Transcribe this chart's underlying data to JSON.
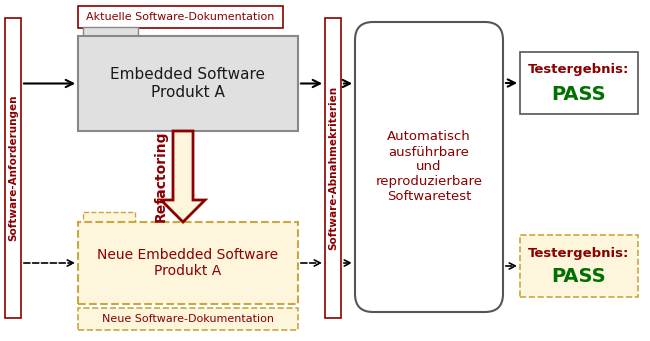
{
  "fig_width": 6.5,
  "fig_height": 3.41,
  "dpi": 100,
  "bg_color": "#ffffff",
  "dark_red": "#8B0000",
  "green": "#007000",
  "box_gray_fill": "#e0e0e0",
  "box_gray_border": "#888888",
  "box_wheat_fill": "#fdf5dc",
  "box_wheat_border": "#c8a840",
  "box_white_fill": "#ffffff",
  "box_dark_border": "#555555",
  "refactor_fill": "#fdf5dc",
  "labels": {
    "sw_anforderungen": "Software-Anforderungen",
    "sw_abnahmekriterien": "Software-Abnahmekriterien",
    "aktuelle_dok": "Aktuelle Software-Dokumentation",
    "neue_dok": "Neue Software-Dokumentation",
    "embedded_old": "Embedded Software\nProdukt A",
    "embedded_new": "Neue Embedded Software\nProdukt A",
    "automatisch": "Automatisch\nausführbare\nund\nreproduzierbare\nSoftwaretest",
    "testergebnis": "Testergebnis:",
    "pass": "PASS",
    "refactoring": "Refactoring"
  }
}
